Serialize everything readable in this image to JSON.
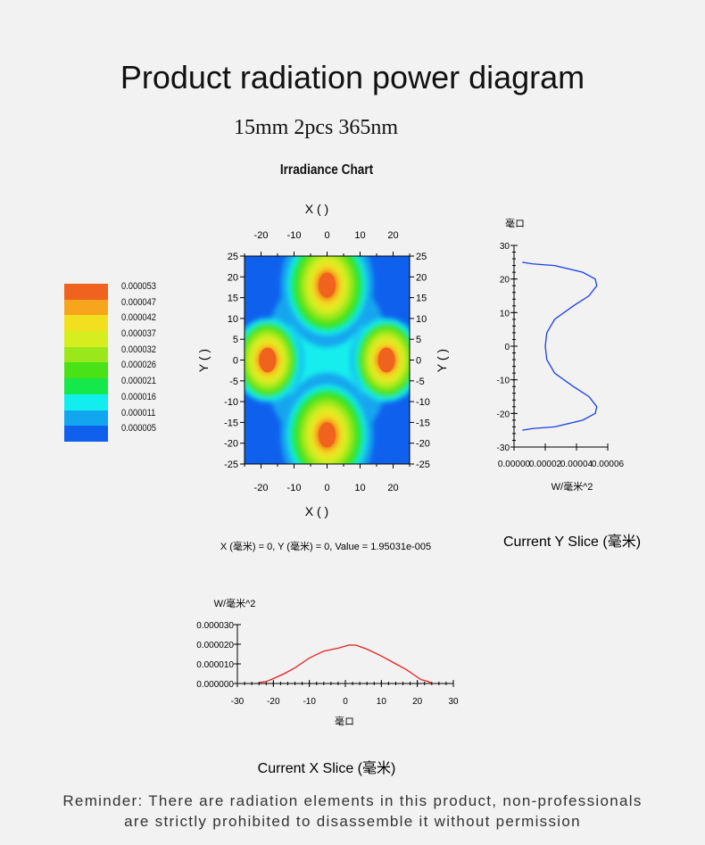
{
  "page": {
    "title": "Product radiation power diagram",
    "subtitle": "15mm 2pcs 365nm",
    "reminder_line1": "Reminder: There are radiation elements in this product, non-professionals",
    "reminder_line2": "are strictly prohibited to disassemble it without permission"
  },
  "chart_data": [
    {
      "type": "heatmap",
      "title": "Irradiance Chart",
      "xlabel": "X ( )",
      "ylabel": "Y ( )",
      "xlim": [
        -25,
        25
      ],
      "ylim": [
        -25,
        25
      ],
      "x_ticks": [
        -20,
        -10,
        0,
        10,
        20
      ],
      "y_ticks": [
        25,
        20,
        15,
        10,
        5,
        0,
        -5,
        -10,
        -15,
        -20,
        -25
      ],
      "hotspots": [
        {
          "x": 0,
          "y": 18
        },
        {
          "x": 0,
          "y": -18
        },
        {
          "x": -18,
          "y": 0
        },
        {
          "x": 18,
          "y": 0
        }
      ],
      "legend": [
        {
          "value": "0.000053",
          "color": "#f0631e"
        },
        {
          "value": "0.000047",
          "color": "#f6a51c"
        },
        {
          "value": "0.000042",
          "color": "#f2e020"
        },
        {
          "value": "0.000037",
          "color": "#d6ee20"
        },
        {
          "value": "0.000032",
          "color": "#9ae81c"
        },
        {
          "value": "0.000026",
          "color": "#49e216"
        },
        {
          "value": "0.000021",
          "color": "#14e84a"
        },
        {
          "value": "0.000016",
          "color": "#12eeee"
        },
        {
          "value": "0.000011",
          "color": "#12a6ee"
        },
        {
          "value": "0.000005",
          "color": "#1060ee"
        }
      ],
      "background_color": "#1060ee",
      "readout": "X (毫米) = 0, Y (毫米) = 0, Value = 1.95031e-005"
    },
    {
      "type": "line",
      "title": "Current Y Slice (毫米)",
      "xlabel": "W/毫米^2",
      "ylabel": "毫ロ",
      "xlim": [
        0,
        6e-05
      ],
      "ylim": [
        -30,
        30
      ],
      "x_ticks": [
        "0.00000",
        "0.00002",
        "0.00004",
        "0.00006"
      ],
      "y_ticks": [
        30,
        20,
        10,
        0,
        -10,
        -20,
        -30
      ],
      "color": "#1a3fe8",
      "x": [
        5.3e-06,
        1.2e-05,
        2.6e-05,
        4.4e-05,
        5.2e-05,
        5.3e-05,
        4.8e-05,
        3.8e-05,
        2.6e-05,
        2.1e-05,
        2e-05,
        2.1e-05,
        2.6e-05,
        3.8e-05,
        4.8e-05,
        5.3e-05,
        5.2e-05,
        4.4e-05,
        2.6e-05,
        1.2e-05,
        5.3e-06
      ],
      "y": [
        -25,
        -24.5,
        -24,
        -22,
        -20,
        -18,
        -15,
        -12,
        -8,
        -4,
        0,
        4,
        8,
        12,
        15,
        18,
        20,
        22,
        24,
        24.5,
        25
      ]
    },
    {
      "type": "line",
      "title": "Current X Slice (毫米)",
      "xlabel": "毫ロ",
      "ylabel": "W/毫米^2",
      "xlim": [
        -30,
        30
      ],
      "ylim": [
        0,
        3e-05
      ],
      "x_ticks": [
        -30,
        -20,
        -10,
        0,
        10,
        20,
        30
      ],
      "y_ticks": [
        "0.000030",
        "0.000020",
        "0.000010",
        "0.000000"
      ],
      "color": "#e82020",
      "x": [
        -24,
        -22,
        -20,
        -17,
        -14,
        -10,
        -6,
        -2,
        1,
        3,
        6,
        10,
        14,
        17,
        19,
        21,
        23,
        24
      ],
      "y": [
        5e-07,
        1e-06,
        2.5e-06,
        5e-06,
        8e-06,
        1.3e-05,
        1.65e-05,
        1.8e-05,
        1.96e-05,
        1.95e-05,
        1.75e-05,
        1.4e-05,
        1e-05,
        7e-06,
        4.5e-06,
        2e-06,
        1e-06,
        3e-07
      ]
    }
  ]
}
